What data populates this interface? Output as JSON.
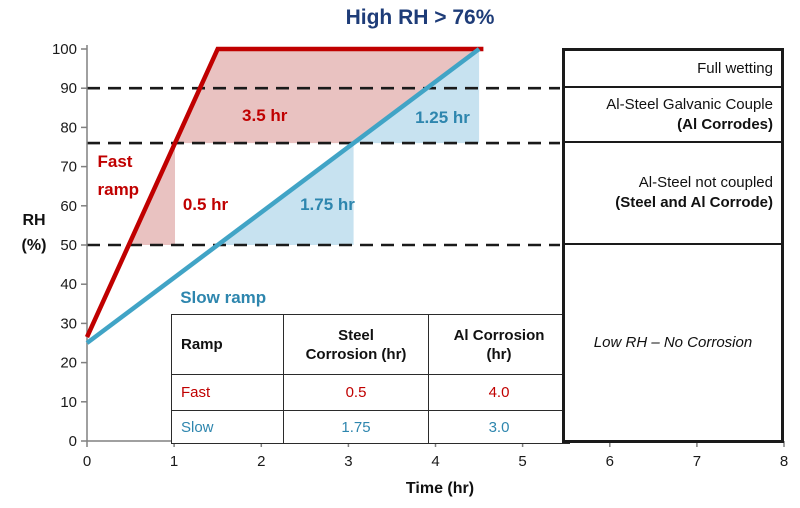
{
  "colors": {
    "red": "#C00000",
    "red_fill": "#E9C2C1",
    "blue": "#41A4C6",
    "blue_text": "#2E86AE",
    "blue_fill": "#C7E2F0",
    "title_navy": "#1E3C78",
    "axis_gray": "#808080",
    "line_black": "#1a1a1a"
  },
  "chart_data": {
    "type": "line",
    "title": "High RH > 76%",
    "xlabel": "Time (hr)",
    "ylabel": "RH (%)",
    "xlim": [
      0,
      8
    ],
    "ylim": [
      0,
      100
    ],
    "xticks": [
      0,
      1,
      2,
      3,
      4,
      5,
      6,
      7,
      8
    ],
    "yticks": [
      0,
      10,
      20,
      30,
      40,
      50,
      60,
      70,
      80,
      90,
      100
    ],
    "grid": false,
    "legend_position": "none",
    "threshold_lines": [
      {
        "y": 90,
        "style": "dashed"
      },
      {
        "y": 76,
        "style": "dashed"
      },
      {
        "y": 50,
        "style": "dashed"
      }
    ],
    "series": [
      {
        "name": "Fast ramp",
        "color": "#C00000",
        "points": [
          [
            0,
            26.5
          ],
          [
            1.5,
            100
          ],
          [
            4.55,
            100
          ]
        ]
      },
      {
        "name": "Slow ramp",
        "color": "#41A4C6",
        "points": [
          [
            0,
            25
          ],
          [
            4.5,
            100
          ]
        ]
      }
    ],
    "regions": [
      {
        "name": "fast-steel-corrosion",
        "fill": "#E9C2C1",
        "points": [
          [
            0.48,
            50
          ],
          [
            1.01,
            76
          ],
          [
            1.01,
            50
          ]
        ]
      },
      {
        "name": "fast-al-corrosion",
        "fill": "#E9C2C1",
        "points": [
          [
            1.01,
            76
          ],
          [
            1.5,
            100
          ],
          [
            4.5,
            100
          ],
          [
            3.06,
            76
          ]
        ]
      },
      {
        "name": "slow-steel-corrosion",
        "fill": "#C7E2F0",
        "points": [
          [
            1.5,
            50
          ],
          [
            3.06,
            76
          ],
          [
            3.06,
            50
          ]
        ]
      },
      {
        "name": "slow-al-corrosion",
        "fill": "#C7E2F0",
        "points": [
          [
            3.06,
            76
          ],
          [
            4.5,
            100
          ],
          [
            4.5,
            76
          ]
        ]
      }
    ],
    "annotations": [
      {
        "name": "fast-ramp-label",
        "lines": [
          "Fast",
          "ramp"
        ],
        "x": 0.12,
        "y": 69.9,
        "anchor": "start",
        "color": "#C00000"
      },
      {
        "name": "fast-steel-duration",
        "lines": [
          "0.5 hr"
        ],
        "x": 1.36,
        "y": 58.9,
        "anchor": "middle",
        "color": "#C00000"
      },
      {
        "name": "fast-al-duration",
        "lines": [
          "3.5 hr"
        ],
        "x": 2.04,
        "y": 81.6,
        "anchor": "middle",
        "color": "#C00000"
      },
      {
        "name": "slow-ramp-label",
        "lines": [
          "Slow ramp"
        ],
        "x": 1.07,
        "y": 35.2,
        "anchor": "start",
        "color": "#2E86AE"
      },
      {
        "name": "slow-steel-duration",
        "lines": [
          "1.75 hr"
        ],
        "x": 2.76,
        "y": 58.9,
        "anchor": "middle",
        "color": "#2E86AE"
      },
      {
        "name": "slow-al-duration",
        "lines": [
          "1.25 hr"
        ],
        "x": 4.08,
        "y": 81.1,
        "anchor": "middle",
        "color": "#2E86AE"
      }
    ]
  },
  "axis": {
    "x_label": "Time (hr)",
    "y_label_line1": "RH",
    "y_label_line2": "(%)"
  },
  "ramp_table": {
    "header_lines": [
      [
        "Ramp"
      ],
      [
        "Steel",
        "Corrosion (hr)"
      ],
      [
        "Al Corrosion",
        "(hr)"
      ]
    ],
    "rows": [
      {
        "label": "Fast",
        "steel": "0.5",
        "al": "4.0"
      },
      {
        "label": "Slow",
        "steel": "1.75",
        "al": "3.0"
      }
    ]
  },
  "zone_panel": {
    "zone1": "Full wetting",
    "zone2_line1": "Al-Steel Galvanic Couple",
    "zone2_line2": "(Al Corrodes)",
    "zone3_line1": "Al-Steel not coupled",
    "zone3_line2": "(Steel and Al Corrode)",
    "zone4": "Low RH – No Corrosion"
  }
}
